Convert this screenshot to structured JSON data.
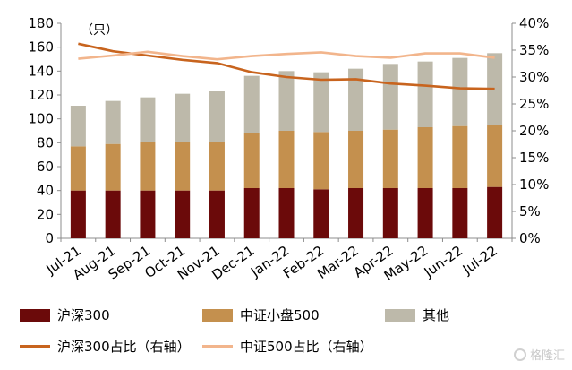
{
  "chart_data": {
    "type": "bar",
    "stacked": true,
    "unit_label": "（只）",
    "categories": [
      "Jul-21",
      "Aug-21",
      "Sep-21",
      "Oct-21",
      "Nov-21",
      "Dec-21",
      "Jan-22",
      "Feb-22",
      "Mar-22",
      "Apr-22",
      "May-22",
      "Jun-22",
      "Jul-22"
    ],
    "ylim": [
      0,
      180
    ],
    "yticks": [
      0,
      20,
      40,
      60,
      80,
      100,
      120,
      140,
      160,
      180
    ],
    "y2lim": [
      0,
      0.4
    ],
    "y2ticks": [
      "0%",
      "5%",
      "10%",
      "15%",
      "20%",
      "25%",
      "30%",
      "35%",
      "40%"
    ],
    "series": [
      {
        "name": "沪深300",
        "kind": "bar",
        "color": "#6b0a0a",
        "values": [
          40,
          40,
          40,
          40,
          40,
          42,
          42,
          41,
          42,
          42,
          42,
          42,
          43
        ]
      },
      {
        "name": "中证小盘500",
        "kind": "bar",
        "color": "#c4904e",
        "values": [
          37,
          39,
          41,
          41,
          41,
          46,
          48,
          48,
          48,
          49,
          51,
          52,
          52
        ]
      },
      {
        "name": "其他",
        "kind": "bar",
        "color": "#bdb9aa",
        "values": [
          34,
          36,
          37,
          40,
          42,
          48,
          50,
          50,
          52,
          55,
          55,
          57,
          60
        ]
      },
      {
        "name": "沪深300占比（右轴）",
        "kind": "line",
        "axis": "right",
        "color": "#c8641e",
        "values": [
          0.362,
          0.348,
          0.34,
          0.332,
          0.326,
          0.309,
          0.3,
          0.295,
          0.296,
          0.288,
          0.284,
          0.279,
          0.278
        ]
      },
      {
        "name": "中证500占比（右轴）",
        "kind": "line",
        "axis": "right",
        "color": "#f2b58c",
        "values": [
          0.334,
          0.34,
          0.347,
          0.339,
          0.333,
          0.339,
          0.343,
          0.346,
          0.339,
          0.336,
          0.344,
          0.344,
          0.336
        ]
      }
    ],
    "legend_position": "bottom",
    "grid": false
  },
  "watermark": "格隆汇"
}
